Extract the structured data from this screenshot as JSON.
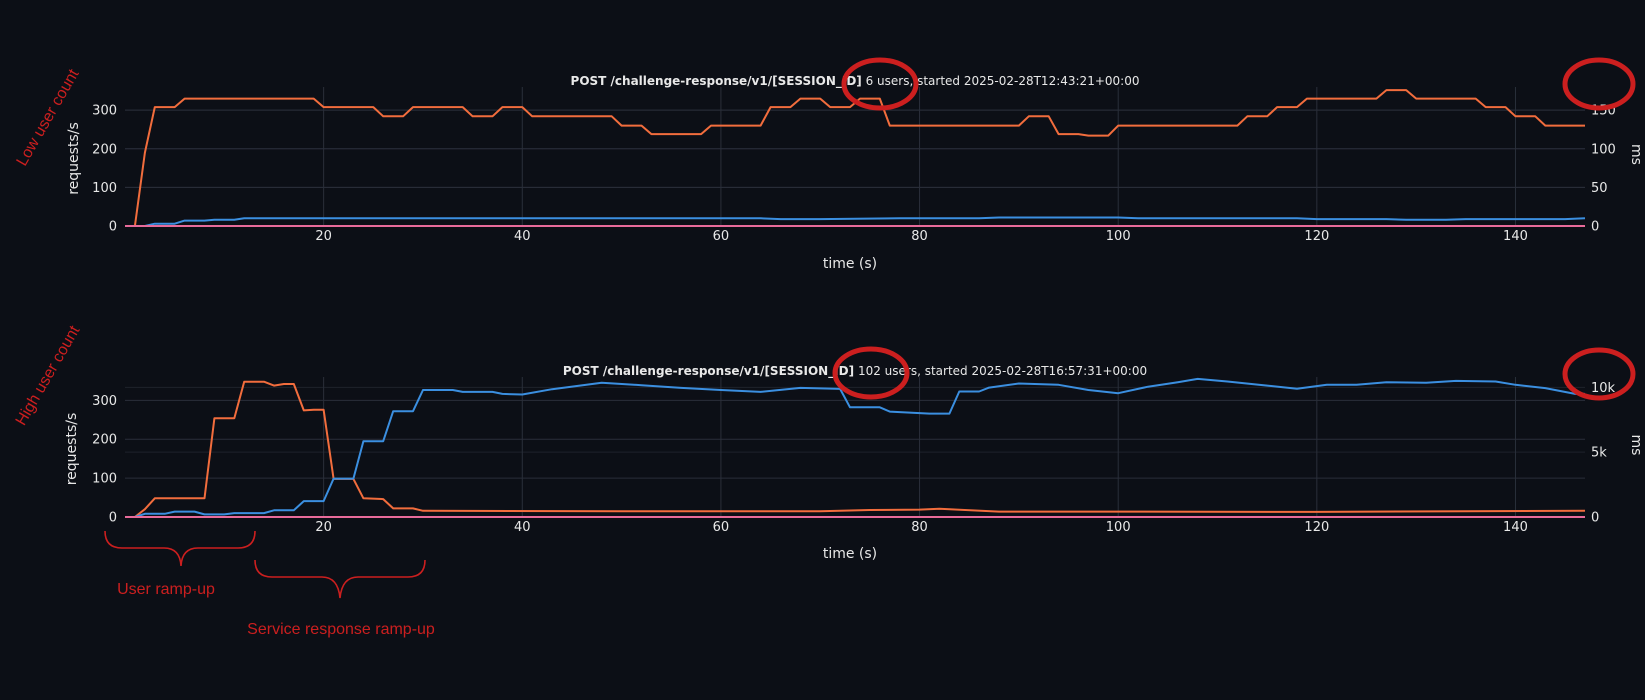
{
  "colors": {
    "background": "#0c0f16",
    "grid": "#2a2f3a",
    "text": "#e8e8e8",
    "requests": "#f26d3d",
    "latency": "#3b8fe0",
    "failures": "#e86b9a",
    "annotation": "#cc1f1f"
  },
  "annotations": {
    "top_side_label": "Low user count",
    "bottom_side_label": "High user count",
    "user_ramp_label": "User ramp-up",
    "service_ramp_label": "Service response ramp-up"
  },
  "chart_data": [
    {
      "type": "line",
      "title_bold": "POST /challenge-response/v1/[SESSION_ID]",
      "title_rest": " 6 users, started 2025-02-28T12:43:21+00:00",
      "xlabel": "time (s)",
      "ylabel": "requests/s",
      "y2label": "ms",
      "xlim": [
        0,
        147
      ],
      "ylim": [
        0,
        360
      ],
      "y2lim": [
        0,
        180
      ],
      "x_ticks": [
        "20",
        "40",
        "60",
        "80",
        "100",
        "120",
        "140"
      ],
      "y_ticks": [
        "0",
        "100",
        "200",
        "300"
      ],
      "y2_ticks": [
        "0",
        "50",
        "100",
        "150"
      ],
      "grid": true,
      "series": [
        {
          "axis": "y",
          "key": "requests",
          "points": [
            [
              0,
              0
            ],
            [
              1,
              0
            ],
            [
              2,
              190
            ],
            [
              3,
              308
            ],
            [
              5,
              308
            ],
            [
              6,
              330
            ],
            [
              19,
              330
            ],
            [
              20,
              308
            ],
            [
              25,
              308
            ],
            [
              26,
              284
            ],
            [
              28,
              284
            ],
            [
              29,
              308
            ],
            [
              34,
              308
            ],
            [
              35,
              284
            ],
            [
              37,
              284
            ],
            [
              38,
              308
            ],
            [
              40,
              308
            ],
            [
              41,
              284
            ],
            [
              49,
              284
            ],
            [
              50,
              260
            ],
            [
              52,
              260
            ],
            [
              53,
              238
            ],
            [
              58,
              238
            ],
            [
              59,
              260
            ],
            [
              64,
              260
            ],
            [
              65,
              308
            ],
            [
              67,
              308
            ],
            [
              68,
              330
            ],
            [
              70,
              330
            ],
            [
              71,
              308
            ],
            [
              73,
              308
            ],
            [
              74,
              330
            ],
            [
              76,
              330
            ],
            [
              77,
              260
            ],
            [
              90,
              260
            ],
            [
              91,
              284
            ],
            [
              93,
              284
            ],
            [
              94,
              238
            ],
            [
              96,
              238
            ],
            [
              97,
              234
            ],
            [
              99,
              234
            ],
            [
              100,
              260
            ],
            [
              112,
              260
            ],
            [
              113,
              284
            ],
            [
              115,
              284
            ],
            [
              116,
              308
            ],
            [
              118,
              308
            ],
            [
              119,
              330
            ],
            [
              126,
              330
            ],
            [
              127,
              352
            ],
            [
              129,
              352
            ],
            [
              130,
              330
            ],
            [
              136,
              330
            ],
            [
              137,
              308
            ],
            [
              139,
              308
            ],
            [
              140,
              284
            ],
            [
              142,
              284
            ],
            [
              143,
              260
            ],
            [
              147,
              260
            ]
          ]
        },
        {
          "axis": "y2",
          "key": "latency",
          "points": [
            [
              2,
              0
            ],
            [
              3,
              3
            ],
            [
              5,
              3
            ],
            [
              6,
              7
            ],
            [
              8,
              7
            ],
            [
              9,
              8
            ],
            [
              11,
              8
            ],
            [
              12,
              10
            ],
            [
              64,
              10
            ],
            [
              66,
              9
            ],
            [
              70,
              9
            ],
            [
              78,
              10
            ],
            [
              86,
              10
            ],
            [
              88,
              11
            ],
            [
              100,
              11
            ],
            [
              102,
              10
            ],
            [
              118,
              10
            ],
            [
              120,
              9
            ],
            [
              127,
              9
            ],
            [
              129,
              8
            ],
            [
              133,
              8
            ],
            [
              135,
              9
            ],
            [
              145,
              9
            ],
            [
              147,
              10
            ]
          ]
        },
        {
          "axis": "y",
          "key": "failures",
          "points": [
            [
              0,
              0
            ],
            [
              147,
              0
            ]
          ]
        }
      ]
    },
    {
      "type": "line",
      "title_bold": "POST /challenge-response/v1/[SESSION_ID]",
      "title_rest": " 102 users, started 2025-02-28T16:57:31+00:00",
      "xlabel": "time (s)",
      "ylabel": "requests/s",
      "y2label": "ms",
      "xlim": [
        0,
        147
      ],
      "ylim": [
        0,
        360
      ],
      "y2lim": [
        0,
        10800
      ],
      "x_ticks": [
        "20",
        "40",
        "60",
        "80",
        "100",
        "120",
        "140"
      ],
      "y_ticks": [
        "0",
        "100",
        "200",
        "300"
      ],
      "y2_ticks": [
        "0",
        "5k",
        "10k"
      ],
      "grid": true,
      "series": [
        {
          "axis": "y",
          "key": "requests",
          "points": [
            [
              0,
              0
            ],
            [
              1,
              0
            ],
            [
              2,
              20
            ],
            [
              3,
              48
            ],
            [
              8,
              48
            ],
            [
              9,
              254
            ],
            [
              11,
              254
            ],
            [
              12,
              348
            ],
            [
              14,
              348
            ],
            [
              15,
              338
            ],
            [
              16,
              342
            ],
            [
              17,
              342
            ],
            [
              18,
              274
            ],
            [
              19,
              276
            ],
            [
              20,
              276
            ],
            [
              21,
              98
            ],
            [
              23,
              98
            ],
            [
              24,
              48
            ],
            [
              26,
              46
            ],
            [
              27,
              22
            ],
            [
              29,
              22
            ],
            [
              30,
              16
            ],
            [
              50,
              15
            ],
            [
              70,
              15
            ],
            [
              75,
              18
            ],
            [
              80,
              19
            ],
            [
              82,
              21
            ],
            [
              88,
              14
            ],
            [
              100,
              14
            ],
            [
              120,
              13
            ],
            [
              135,
              15
            ],
            [
              147,
              16
            ]
          ]
        },
        {
          "axis": "y2",
          "key": "latency",
          "points": [
            [
              0,
              0
            ],
            [
              1,
              0
            ],
            [
              2,
              250
            ],
            [
              4,
              250
            ],
            [
              5,
              420
            ],
            [
              7,
              420
            ],
            [
              8,
              200
            ],
            [
              10,
              200
            ],
            [
              11,
              300
            ],
            [
              14,
              300
            ],
            [
              15,
              520
            ],
            [
              17,
              520
            ],
            [
              18,
              1230
            ],
            [
              20,
              1230
            ],
            [
              21,
              2960
            ],
            [
              23,
              2960
            ],
            [
              24,
              5850
            ],
            [
              26,
              5850
            ],
            [
              27,
              8160
            ],
            [
              29,
              8160
            ],
            [
              30,
              9800
            ],
            [
              33,
              9800
            ],
            [
              34,
              9650
            ],
            [
              37,
              9650
            ],
            [
              38,
              9500
            ],
            [
              40,
              9450
            ],
            [
              43,
              9860
            ],
            [
              48,
              10350
            ],
            [
              52,
              10170
            ],
            [
              56,
              9960
            ],
            [
              60,
              9800
            ],
            [
              64,
              9650
            ],
            [
              68,
              9960
            ],
            [
              72,
              9880
            ],
            [
              73,
              8460
            ],
            [
              76,
              8460
            ],
            [
              77,
              8130
            ],
            [
              81,
              7980
            ],
            [
              83,
              7980
            ],
            [
              84,
              9680
            ],
            [
              86,
              9680
            ],
            [
              87,
              9980
            ],
            [
              90,
              10300
            ],
            [
              94,
              10200
            ],
            [
              97,
              9800
            ],
            [
              100,
              9550
            ],
            [
              103,
              10050
            ],
            [
              106,
              10400
            ],
            [
              108,
              10650
            ],
            [
              111,
              10450
            ],
            [
              115,
              10140
            ],
            [
              118,
              9900
            ],
            [
              121,
              10200
            ],
            [
              124,
              10200
            ],
            [
              127,
              10400
            ],
            [
              131,
              10350
            ],
            [
              134,
              10500
            ],
            [
              138,
              10450
            ],
            [
              140,
              10200
            ],
            [
              143,
              9940
            ],
            [
              146,
              9500
            ],
            [
              147,
              9500
            ]
          ]
        },
        {
          "axis": "y",
          "key": "failures",
          "points": [
            [
              0,
              0
            ],
            [
              147,
              0
            ]
          ]
        }
      ]
    }
  ]
}
